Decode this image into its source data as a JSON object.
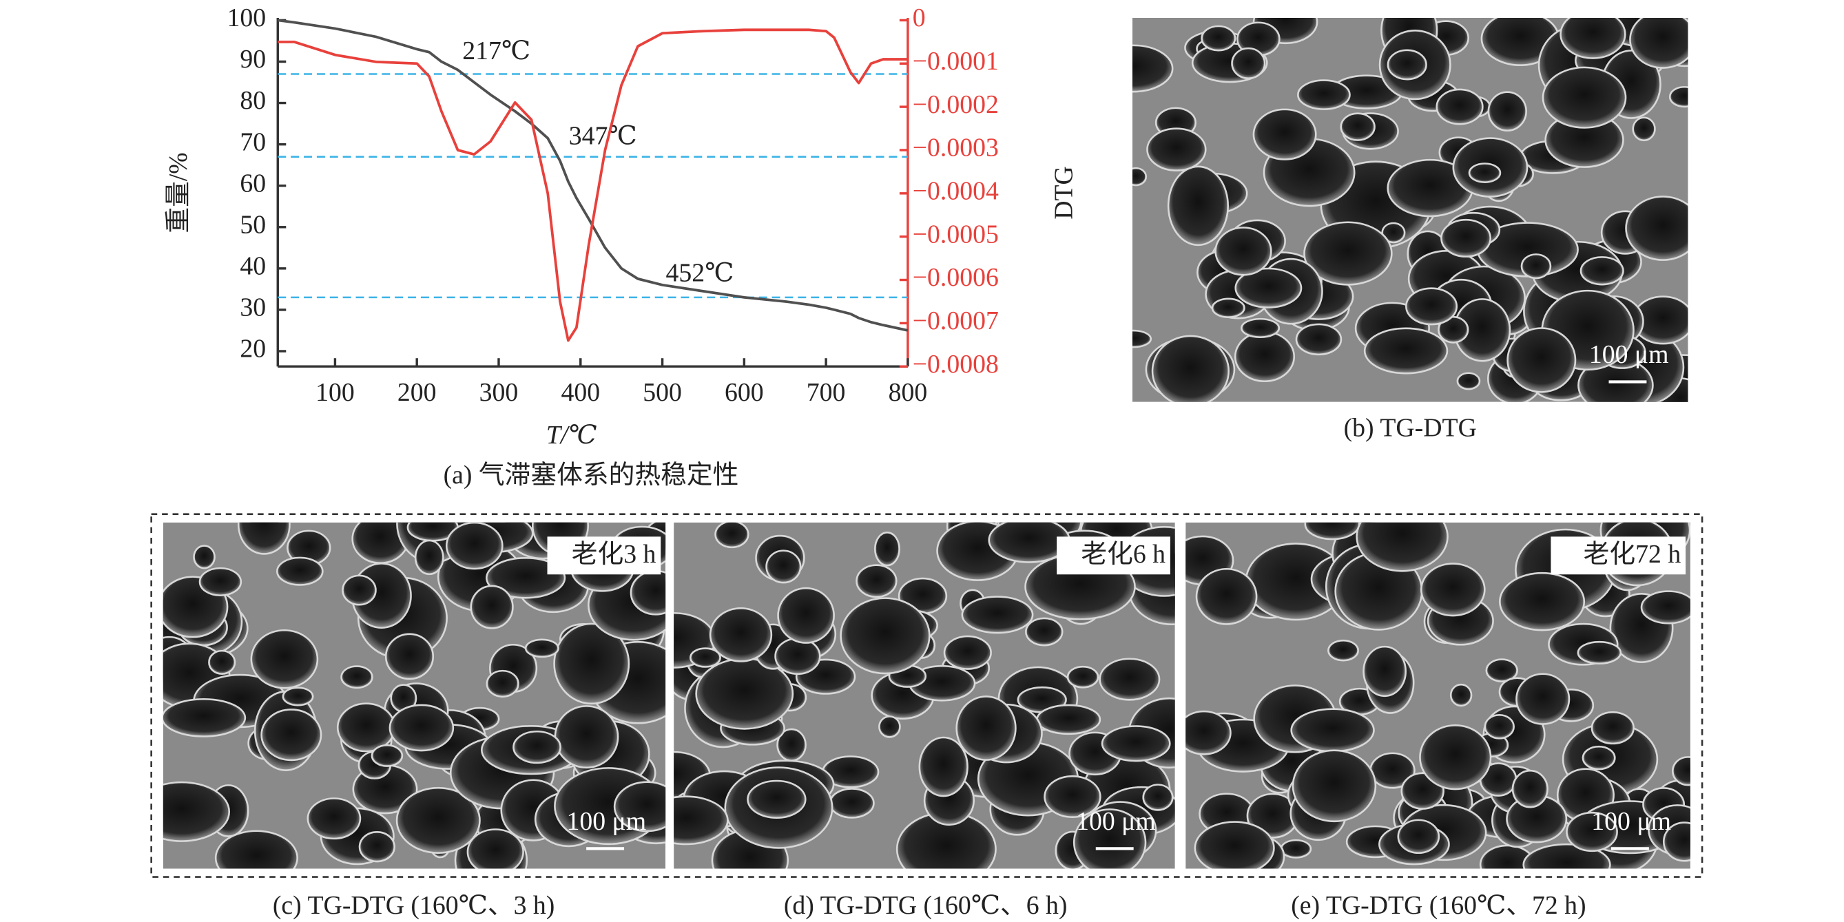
{
  "chart_data": {
    "type": "line",
    "x_label": "T/℃",
    "y_label": "重量/%",
    "y2_label": "DTG",
    "caption": "(a) 气滞塞体系的热稳定性",
    "xlim": [
      30,
      800
    ],
    "xticks": [
      100,
      200,
      300,
      400,
      500,
      600,
      700,
      800
    ],
    "ylim": [
      16.3,
      100
    ],
    "yticks": [
      20,
      30,
      40,
      50,
      60,
      70,
      80,
      90,
      100
    ],
    "y2lim": [
      -0.0008,
      0
    ],
    "y2ticks": [
      0,
      {
        "value": -0.0001,
        "label": "−0.0001"
      },
      {
        "value": -0.0002,
        "label": "−0.0002"
      },
      {
        "value": -0.0003,
        "label": "−0.0003"
      },
      {
        "value": -0.0004,
        "label": "−0.0004"
      },
      {
        "value": -0.0005,
        "label": "−0.0005"
      },
      {
        "value": -0.0006,
        "label": "−0.0006"
      },
      {
        "value": -0.0007,
        "label": "−0.0007"
      },
      {
        "value": -0.0008,
        "label": "−0.0008"
      }
    ],
    "x": [
      30,
      50,
      100,
      150,
      200,
      215,
      230,
      250,
      270,
      290,
      320,
      340,
      360,
      375,
      385,
      395,
      410,
      430,
      450,
      470,
      500,
      550,
      600,
      650,
      680,
      700,
      710,
      730,
      740,
      755,
      770,
      800
    ],
    "series": [
      {
        "color": "#505050",
        "values": [
          100,
          99.5,
          98,
          96,
          93,
          92.3,
          90,
          88,
          85,
          82,
          78,
          75,
          71.5,
          66,
          61,
          57,
          52,
          45,
          40,
          37.5,
          36,
          34.5,
          33,
          32,
          31.2,
          30.5,
          30,
          29,
          28,
          27,
          26.3,
          25
        ]
      },
      {
        "color": "#e8413c",
        "axis": "y2",
        "values": [
          -5e-05,
          -5e-05,
          -8e-05,
          -9.6e-05,
          -0.0001,
          -0.00013,
          -0.00021,
          -0.0003,
          -0.00031,
          -0.00028,
          -0.00019,
          -0.00023,
          -0.0004,
          -0.00065,
          -0.00074,
          -0.00071,
          -0.00052,
          -0.0003,
          -0.00015,
          -6e-05,
          -3e-05,
          -2.5e-05,
          -2.2e-05,
          -2.2e-05,
          -2.2e-05,
          -2.5e-05,
          -4e-05,
          -0.00012,
          -0.000145,
          -0.0001,
          -9e-05,
          -9e-05
        ]
      }
    ],
    "annotations": [
      {
        "text": "217℃",
        "y": 87
      },
      {
        "text": "347℃",
        "y": 67
      },
      {
        "text": "452℃",
        "y": 33
      }
    ],
    "annotation_color": "#3cb4e6"
  },
  "panels": [
    {
      "caption": "(b) TG-DTG",
      "scale": "100 μm"
    },
    {
      "caption": "(c) TG-DTG (160℃、3 h)",
      "label": "老化3 h",
      "scale": "100 μm"
    },
    {
      "caption": "(d) TG-DTG (160℃、6 h)",
      "label": "老化6 h",
      "scale": "100 μm"
    },
    {
      "caption": "(e) TG-DTG (160℃、72 h)",
      "label": "老化72 h",
      "scale": "100 μm"
    }
  ]
}
